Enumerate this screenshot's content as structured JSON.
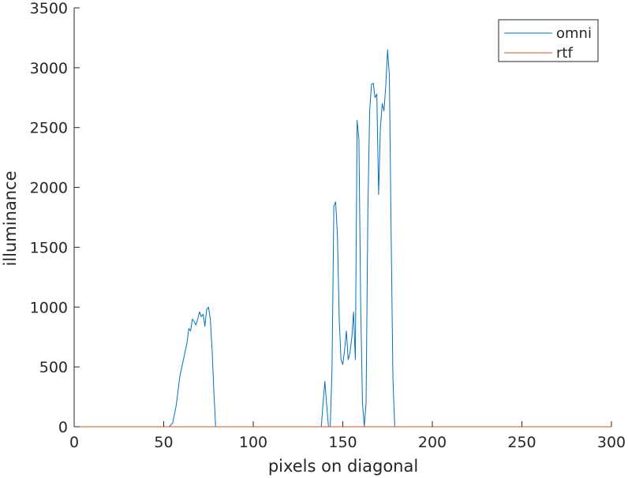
{
  "chart_data": {
    "type": "line",
    "title": "",
    "xlabel": "pixels on diagonal",
    "ylabel": "illuminance",
    "xlim": [
      0,
      300
    ],
    "ylim": [
      0,
      3500
    ],
    "xticks": [
      0,
      50,
      100,
      150,
      200,
      250,
      300
    ],
    "yticks": [
      0,
      500,
      1000,
      1500,
      2000,
      2500,
      3000,
      3500
    ],
    "grid": false,
    "legend_position": "top-right",
    "series": [
      {
        "name": "omni",
        "color": "#0072BD",
        "points": [
          [
            0,
            0
          ],
          [
            53,
            0
          ],
          [
            55,
            30
          ],
          [
            57,
            180
          ],
          [
            59,
            420
          ],
          [
            61,
            560
          ],
          [
            63,
            700
          ],
          [
            64,
            820
          ],
          [
            65,
            800
          ],
          [
            66,
            900
          ],
          [
            67,
            880
          ],
          [
            68,
            850
          ],
          [
            69,
            900
          ],
          [
            70,
            960
          ],
          [
            71,
            920
          ],
          [
            72,
            940
          ],
          [
            73,
            840
          ],
          [
            74,
            980
          ],
          [
            75,
            1000
          ],
          [
            76,
            900
          ],
          [
            77,
            650
          ],
          [
            78,
            300
          ],
          [
            79,
            0
          ],
          [
            138,
            0
          ],
          [
            139,
            200
          ],
          [
            140,
            380
          ],
          [
            141,
            180
          ],
          [
            142,
            0
          ],
          [
            143,
            0
          ],
          [
            144,
            500
          ],
          [
            145,
            1840
          ],
          [
            146,
            1880
          ],
          [
            147,
            1600
          ],
          [
            148,
            900
          ],
          [
            149,
            560
          ],
          [
            150,
            520
          ],
          [
            151,
            640
          ],
          [
            152,
            800
          ],
          [
            153,
            560
          ],
          [
            154,
            620
          ],
          [
            155,
            740
          ],
          [
            156,
            960
          ],
          [
            157,
            560
          ],
          [
            158,
            2560
          ],
          [
            159,
            2400
          ],
          [
            160,
            1000
          ],
          [
            161,
            200
          ],
          [
            162,
            0
          ],
          [
            163,
            200
          ],
          [
            164,
            1800
          ],
          [
            165,
            2640
          ],
          [
            166,
            2860
          ],
          [
            167,
            2870
          ],
          [
            168,
            2750
          ],
          [
            169,
            2780
          ],
          [
            170,
            1940
          ],
          [
            171,
            2500
          ],
          [
            172,
            2700
          ],
          [
            173,
            2640
          ],
          [
            174,
            2850
          ],
          [
            175,
            3150
          ],
          [
            176,
            2940
          ],
          [
            177,
            1600
          ],
          [
            178,
            400
          ],
          [
            179,
            0
          ],
          [
            300,
            0
          ]
        ]
      },
      {
        "name": "rtf",
        "color": "#D95319",
        "points": [
          [
            0,
            0
          ],
          [
            300,
            0
          ]
        ]
      }
    ]
  }
}
